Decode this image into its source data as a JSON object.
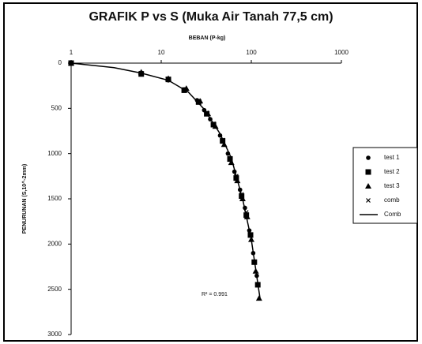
{
  "chart_data": {
    "type": "scatter",
    "title": "GRAFIK P vs S (Muka Air Tanah 77,5 cm)",
    "x_label": "BEBAN (P-kg)",
    "y_label": "PENURUNAN (S,10^-2mm)",
    "x_scale": "log",
    "x_axis_position": "top",
    "y_inverted": true,
    "xlim": [
      1,
      1000
    ],
    "xticks": [
      1,
      10,
      100,
      1000
    ],
    "ylim": [
      0,
      3000
    ],
    "yticks": [
      0,
      500,
      1000,
      1500,
      2000,
      2500,
      3000
    ],
    "grid": false,
    "legend": "right",
    "annotation": "R² = 0.991",
    "series": [
      {
        "name": "test 1",
        "marker": "circle",
        "color": "#000000",
        "x": [
          1,
          6,
          12,
          18,
          25,
          30,
          35,
          45,
          55,
          65,
          75,
          85,
          95,
          105,
          115
        ],
        "values": [
          0,
          110,
          190,
          290,
          410,
          520,
          620,
          800,
          1000,
          1200,
          1400,
          1600,
          1850,
          2100,
          2350
        ]
      },
      {
        "name": "test 2",
        "marker": "square",
        "color": "#000000",
        "x": [
          1,
          6,
          12,
          18,
          26,
          32,
          38,
          48,
          58,
          68,
          78,
          88,
          98,
          108,
          118
        ],
        "values": [
          0,
          120,
          180,
          300,
          430,
          560,
          680,
          860,
          1060,
          1270,
          1470,
          1680,
          1900,
          2200,
          2450
        ]
      },
      {
        "name": "test 3",
        "marker": "triangle",
        "color": "#000000",
        "x": [
          1,
          6,
          12,
          19,
          27,
          33,
          40,
          50,
          60,
          70,
          80,
          90,
          100,
          112,
          122
        ],
        "values": [
          0,
          100,
          170,
          280,
          420,
          560,
          700,
          900,
          1100,
          1300,
          1500,
          1700,
          1950,
          2300,
          2600
        ]
      },
      {
        "name": "comb",
        "marker": "x",
        "color": "#000000",
        "x": [
          1,
          6,
          12,
          18,
          26,
          32,
          38,
          48,
          58,
          68,
          78,
          88,
          98,
          108,
          118
        ],
        "values": [
          0,
          110,
          180,
          290,
          420,
          550,
          670,
          850,
          1050,
          1250,
          1450,
          1650,
          1900,
          2200,
          2450
        ]
      },
      {
        "name": "Comb",
        "marker": "line",
        "color": "#000000",
        "x": [
          1,
          3,
          6,
          12,
          20,
          30,
          45,
          60,
          80,
          100,
          125
        ],
        "values": [
          0,
          50,
          110,
          190,
          320,
          510,
          780,
          1050,
          1500,
          1950,
          2600
        ]
      }
    ]
  }
}
